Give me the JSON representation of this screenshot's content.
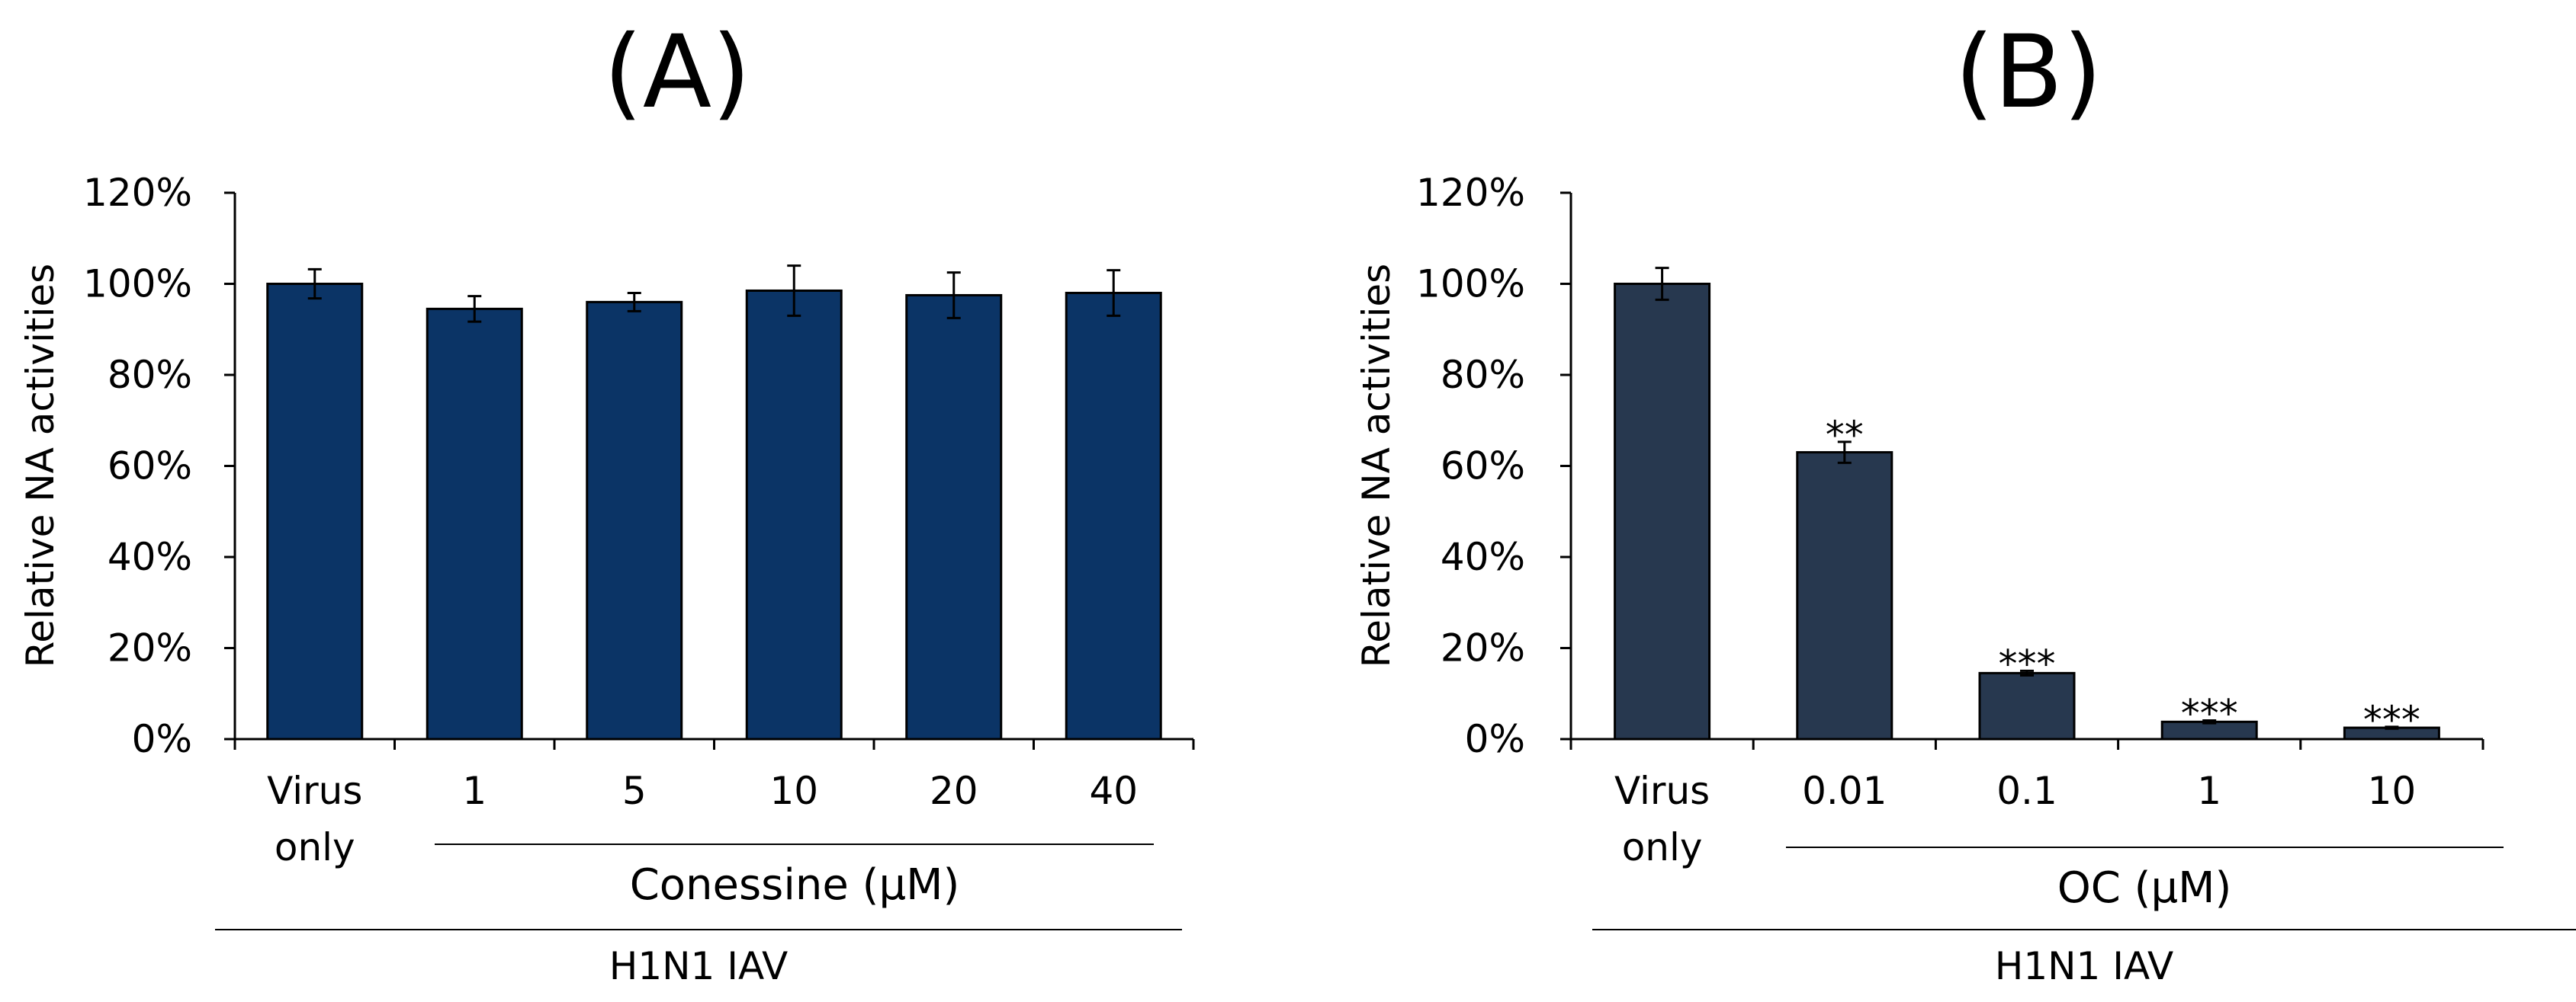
{
  "chart_data": [
    {
      "type": "bar",
      "panel_label": "(A)",
      "ylabel": "Relative NA activities",
      "ylim": [
        0,
        120
      ],
      "ytick_labels": [
        "0%",
        "20%",
        "40%",
        "60%",
        "80%",
        "100%",
        "120%"
      ],
      "yticks": [
        0,
        20,
        40,
        60,
        80,
        100,
        120
      ],
      "categories": [
        "Virus only",
        "1",
        "5",
        "10",
        "20",
        "40"
      ],
      "category_lines": [
        [
          "Virus",
          "only"
        ],
        [
          "1"
        ],
        [
          "5"
        ],
        [
          "10"
        ],
        [
          "20"
        ],
        [
          "40"
        ]
      ],
      "values": [
        100,
        94.5,
        96,
        98.5,
        97.5,
        98
      ],
      "errors": [
        3.2,
        2.8,
        2.0,
        5.5,
        5.0,
        5.0
      ],
      "significance": [
        "",
        "",
        "",
        "",
        "",
        ""
      ],
      "group_label": "Conessine (μM)",
      "footer_label": "H1N1 IAV",
      "bar_color": "#0b3466",
      "grid": false,
      "legend": "none"
    },
    {
      "type": "bar",
      "panel_label": "(B)",
      "ylabel": "Relative NA activities",
      "ylim": [
        0,
        120
      ],
      "ytick_labels": [
        "0%",
        "20%",
        "40%",
        "60%",
        "80%",
        "100%",
        "120%"
      ],
      "yticks": [
        0,
        20,
        40,
        60,
        80,
        100,
        120
      ],
      "categories": [
        "Virus only",
        "0.01",
        "0.1",
        "1",
        "10"
      ],
      "category_lines": [
        [
          "Virus",
          "only"
        ],
        [
          "0.01"
        ],
        [
          "0.1"
        ],
        [
          "1"
        ],
        [
          "10"
        ]
      ],
      "values": [
        100,
        63,
        14.5,
        3.8,
        2.5
      ],
      "errors": [
        3.5,
        2.3,
        0.5,
        0.3,
        0.2
      ],
      "significance": [
        "",
        "**",
        "***",
        "***",
        "***"
      ],
      "group_label": "OC (μM)",
      "footer_label": "H1N1 IAV",
      "bar_color": "#27384f",
      "grid": false,
      "legend": "none"
    }
  ]
}
